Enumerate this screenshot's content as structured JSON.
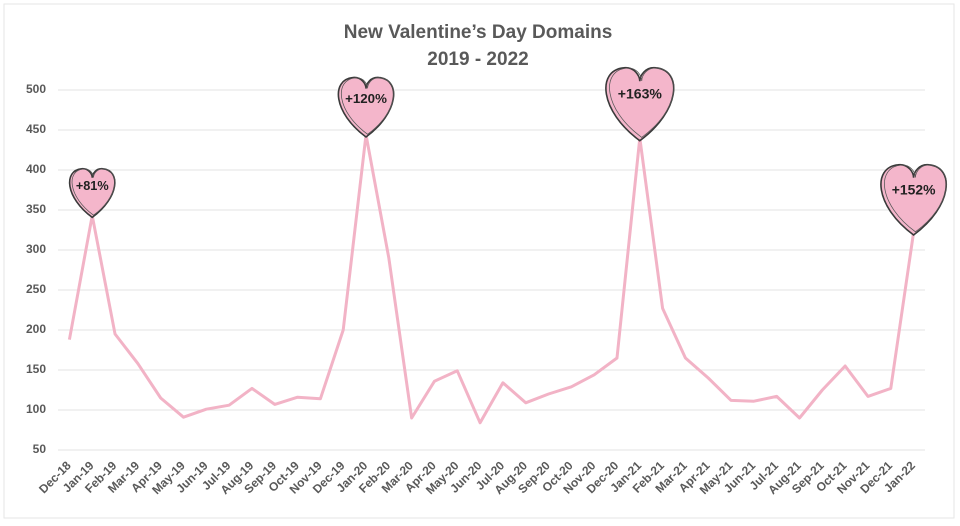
{
  "chart_data": {
    "type": "line",
    "title": "New Valentine’s Day Domains",
    "subtitle": "2019 - 2022",
    "categories": [
      "Dec-18",
      "Jan-19",
      "Feb-19",
      "Mar-19",
      "Apr-19",
      "May-19",
      "Jun-19",
      "Jul-19",
      "Aug-19",
      "Sep-19",
      "Oct-19",
      "Nov-19",
      "Dec-19",
      "Jan-20",
      "Feb-20",
      "Mar-20",
      "Apr-20",
      "May-20",
      "Jun-20",
      "Jul-20",
      "Aug-20",
      "Sep-20",
      "Oct-20",
      "Nov-20",
      "Dec-20",
      "Jan-21",
      "Feb-21",
      "Mar-21",
      "Apr-21",
      "May-21",
      "Jun-21",
      "Jul-21",
      "Aug-21",
      "Sep-21",
      "Oct-21",
      "Nov-21",
      "Dec-21",
      "Jan-22"
    ],
    "series": [
      {
        "color": "#f2b3c6",
        "values": [
          188,
          343,
          195,
          158,
          115,
          91,
          101,
          106,
          127,
          107,
          116,
          114,
          200,
          444,
          290,
          90,
          136,
          149,
          84,
          134,
          109,
          120,
          129,
          144,
          165,
          440,
          227,
          165,
          140,
          112,
          111,
          117,
          90,
          125,
          155,
          117,
          127,
          322
        ]
      }
    ],
    "annotations": [
      "+81%",
      "+120%",
      "+163%",
      "+152%"
    ],
    "ylim": [
      50,
      500
    ],
    "yticks": [
      50,
      100,
      150,
      200,
      250,
      300,
      350,
      400,
      450,
      500
    ],
    "grid": true
  }
}
